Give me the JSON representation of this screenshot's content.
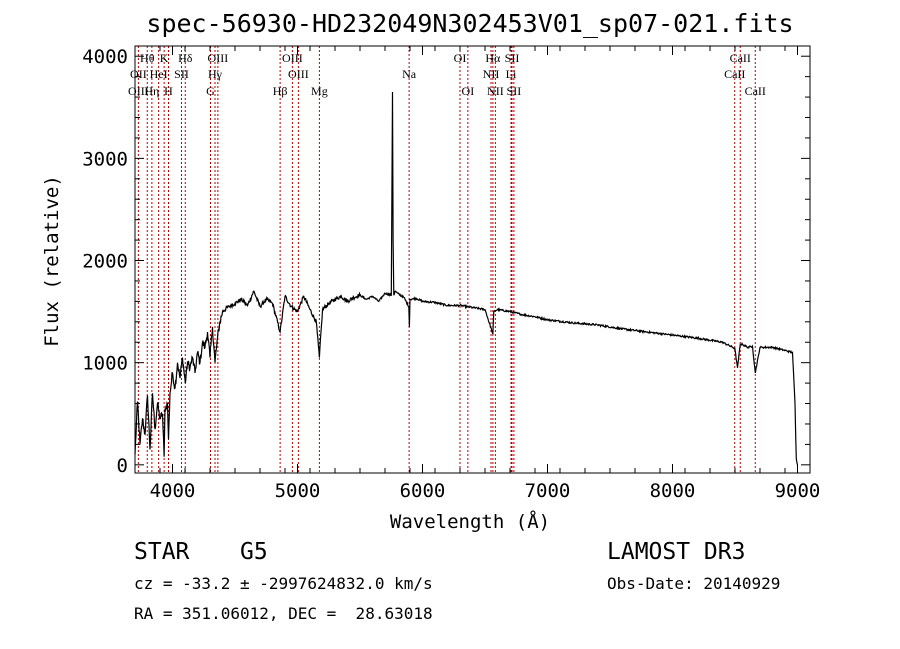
{
  "chart_data": {
    "type": "line",
    "title": "spec-56930-HD232049N302453V01_sp07-021.fits",
    "xlabel": "Wavelength (Å)",
    "ylabel": "Flux (relative)",
    "xlim": [
      3700,
      9100
    ],
    "ylim": [
      -80,
      4100
    ],
    "x_ticks": [
      "4000",
      "5000",
      "6000",
      "7000",
      "8000",
      "9000"
    ],
    "y_ticks": [
      "0",
      "1000",
      "2000",
      "3000",
      "4000"
    ],
    "grid": false,
    "series": [
      {
        "x": [
          3700,
          3720,
          3740,
          3760,
          3780,
          3800,
          3820,
          3840,
          3860,
          3880,
          3900,
          3920,
          3933,
          3940,
          3960,
          3968,
          3980,
          4000,
          4020,
          4040,
          4060,
          4080,
          4102,
          4120,
          4140,
          4160,
          4180,
          4200,
          4220,
          4240,
          4260,
          4280,
          4300,
          4320,
          4340,
          4361,
          4380,
          4400,
          4450,
          4500,
          4550,
          4600,
          4650,
          4700,
          4750,
          4800,
          4861,
          4900,
          4950,
          5000,
          5050,
          5100,
          5150,
          5175,
          5200,
          5250,
          5300,
          5350,
          5400,
          5450,
          5500,
          5550,
          5600,
          5650,
          5700,
          5750,
          5760,
          5765,
          5770,
          5780,
          5800,
          5850,
          5890,
          5895,
          5900,
          5950,
          6000,
          6100,
          6200,
          6300,
          6400,
          6500,
          6563,
          6570,
          6600,
          6700,
          6800,
          6900,
          7000,
          7200,
          7400,
          7600,
          7800,
          8000,
          8200,
          8400,
          8498,
          8520,
          8542,
          8560,
          8600,
          8640,
          8662,
          8700,
          8800,
          8900,
          8960,
          8980,
          8990,
          9000
        ],
        "y": [
          100,
          620,
          200,
          450,
          300,
          680,
          150,
          700,
          350,
          600,
          450,
          500,
          80,
          550,
          600,
          250,
          700,
          900,
          750,
          1000,
          850,
          1050,
          800,
          1000,
          950,
          1050,
          900,
          1100,
          1000,
          1200,
          1150,
          1300,
          1050,
          1350,
          1000,
          1250,
          1400,
          1500,
          1550,
          1580,
          1620,
          1560,
          1700,
          1550,
          1620,
          1580,
          1300,
          1650,
          1550,
          1500,
          1650,
          1520,
          1400,
          1050,
          1520,
          1580,
          1620,
          1650,
          1600,
          1640,
          1660,
          1620,
          1650,
          1600,
          1680,
          1660,
          3650,
          2200,
          1660,
          1700,
          1680,
          1640,
          1550,
          1350,
          1620,
          1630,
          1600,
          1590,
          1560,
          1560,
          1540,
          1520,
          1280,
          1500,
          1520,
          1500,
          1470,
          1450,
          1420,
          1390,
          1370,
          1330,
          1300,
          1270,
          1240,
          1200,
          1140,
          950,
          1180,
          1180,
          1150,
          1160,
          900,
          1150,
          1150,
          1120,
          1100,
          600,
          60,
          0
        ]
      }
    ],
    "spectral_lines": [
      {
        "label": "Hθ",
        "wl": 3798,
        "row": 1
      },
      {
        "label": "K",
        "wl": 3933,
        "row": 1
      },
      {
        "label": "Hδ",
        "wl": 4102,
        "row": 1
      },
      {
        "label": "OIII",
        "wl": 4363,
        "row": 1
      },
      {
        "label": "OIII",
        "wl": 4959,
        "row": 1
      },
      {
        "label": "OI",
        "wl": 6300,
        "row": 1
      },
      {
        "label": "Hα",
        "wl": 6563,
        "row": 1
      },
      {
        "label": "SII",
        "wl": 6716,
        "row": 1
      },
      {
        "label": "CaII",
        "wl": 8542,
        "row": 1
      },
      {
        "label": "OII",
        "wl": 3727,
        "row": 2
      },
      {
        "label": "HeI",
        "wl": 3889,
        "row": 2
      },
      {
        "label": "SII",
        "wl": 4072,
        "row": 2
      },
      {
        "label": "Hγ",
        "wl": 4340,
        "row": 2
      },
      {
        "label": "OIII",
        "wl": 5007,
        "row": 2
      },
      {
        "label": "Na",
        "wl": 5893,
        "row": 2
      },
      {
        "label": "NII",
        "wl": 6548,
        "row": 2
      },
      {
        "label": "Li",
        "wl": 6708,
        "row": 2
      },
      {
        "label": "CaII",
        "wl": 8498,
        "row": 2
      },
      {
        "label": "OIII",
        "wl": 3727,
        "row": 3
      },
      {
        "label": "Hη",
        "wl": 3835,
        "row": 3
      },
      {
        "label": "H",
        "wl": 3968,
        "row": 3
      },
      {
        "label": "G",
        "wl": 4304,
        "row": 3
      },
      {
        "label": "Hβ",
        "wl": 4861,
        "row": 3
      },
      {
        "label": "Mg",
        "wl": 5175,
        "row": 3
      },
      {
        "label": "OI",
        "wl": 6363,
        "row": 3
      },
      {
        "label": "NII",
        "wl": 6583,
        "row": 3
      },
      {
        "label": "SII",
        "wl": 6731,
        "row": 3
      },
      {
        "label": "CaII",
        "wl": 8662,
        "row": 3
      }
    ]
  },
  "info": {
    "object_class": "STAR",
    "subclass": "G5",
    "survey": "LAMOST DR3",
    "redshift": "cz = -33.2 ± -2997624832.0 km/s",
    "obs_date": "Obs-Date: 20140929",
    "coords": "RA = 351.06012, DEC =  28.63018"
  }
}
